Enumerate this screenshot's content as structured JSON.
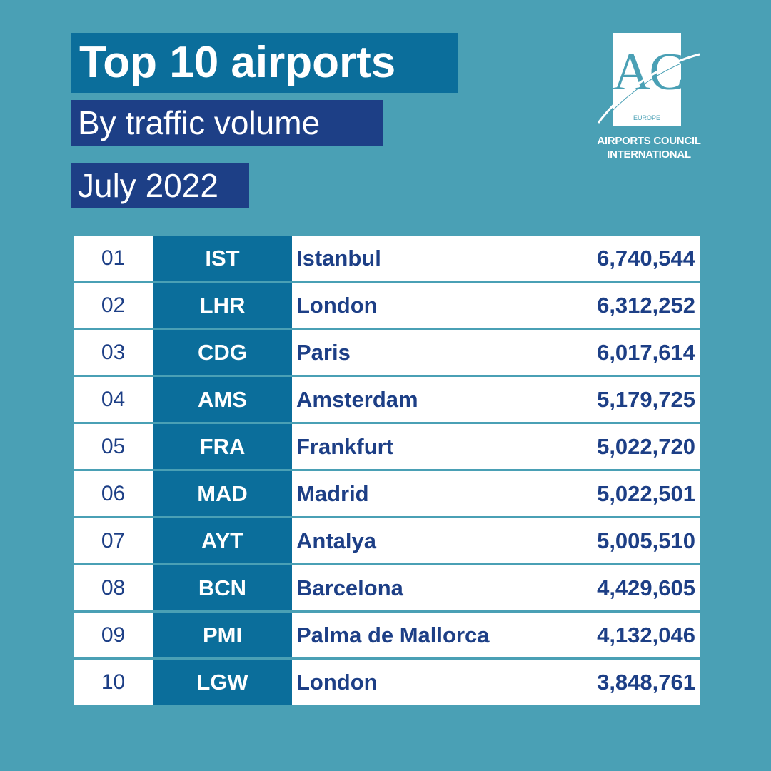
{
  "header": {
    "title": "Top 10 airports",
    "subtitle": "By traffic volume",
    "date": "July 2022"
  },
  "logo": {
    "mark": "ACI",
    "sub": "EUROPE",
    "caption_line1": "AIRPORTS COUNCIL",
    "caption_line2": "INTERNATIONAL"
  },
  "colors": {
    "background": "#4aa0b5",
    "title_box": "#0b6e9b",
    "subtitle_box": "#1d3f86",
    "code_cell": "#0b6e9b",
    "text_dark": "#1d3f86"
  },
  "chart_data": {
    "type": "table",
    "title": "Top 10 airports",
    "subtitle": "By traffic volume",
    "columns": [
      "",
      "",
      "",
      ""
    ],
    "rows": [
      {
        "rank": "01",
        "code": "IST",
        "city": "Istanbul",
        "value": "6,740,544"
      },
      {
        "rank": "02",
        "code": "LHR",
        "city": "London",
        "value": "6,312,252"
      },
      {
        "rank": "03",
        "code": "CDG",
        "city": "Paris",
        "value": "6,017,614"
      },
      {
        "rank": "04",
        "code": "AMS",
        "city": "Amsterdam",
        "value": "5,179,725"
      },
      {
        "rank": "05",
        "code": "FRA",
        "city": "Frankfurt",
        "value": "5,022,720"
      },
      {
        "rank": "06",
        "code": "MAD",
        "city": "Madrid",
        "value": "5,022,501"
      },
      {
        "rank": "07",
        "code": "AYT",
        "city": "Antalya",
        "value": "5,005,510"
      },
      {
        "rank": "08",
        "code": "BCN",
        "city": "Barcelona",
        "value": "4,429,605"
      },
      {
        "rank": "09",
        "code": "PMI",
        "city": "Palma de Mallorca",
        "value": "4,132,046"
      },
      {
        "rank": "10",
        "code": "LGW",
        "city": "London",
        "value": "3,848,761"
      }
    ]
  }
}
